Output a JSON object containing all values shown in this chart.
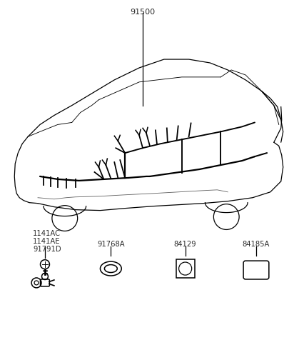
{
  "bg_color": "#ffffff",
  "line_color": "#000000",
  "text_color": "#2a2a2a",
  "label_91500": "91500",
  "label_1141AC": "1141AC",
  "label_1141AE": "1141AE",
  "label_91791D": "91791D",
  "label_91768A": "91768A",
  "label_84129": "84129",
  "label_84185A": "84185A",
  "figsize": [
    4.12,
    4.77
  ],
  "dpi": 100
}
